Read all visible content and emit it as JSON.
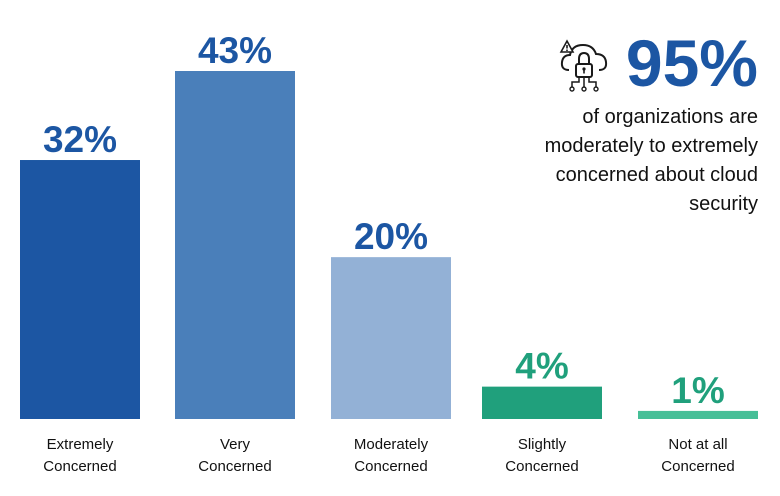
{
  "chart_data": {
    "type": "bar",
    "categories": [
      [
        "Extremely",
        "Concerned"
      ],
      [
        "Very",
        "Concerned"
      ],
      [
        "Moderately",
        "Concerned"
      ],
      [
        "Slightly",
        "Concerned"
      ],
      [
        "Not at all",
        "Concerned"
      ]
    ],
    "values": [
      32,
      43,
      20,
      4,
      1
    ],
    "value_labels": [
      "32%",
      "43%",
      "20%",
      "4%",
      "1%"
    ],
    "bar_colors": [
      "#1c56a3",
      "#4a7fba",
      "#93b1d6",
      "#20a07c",
      "#46bf97"
    ],
    "label_colors": [
      "#1c56a3",
      "#1c56a3",
      "#1c56a3",
      "#20a07c",
      "#20a07c"
    ],
    "ylim": [
      0,
      50
    ],
    "grid": false,
    "legend": "none",
    "xlabel": "",
    "ylabel": ""
  },
  "callout": {
    "stat": "95%",
    "text_lines": [
      "of organizations are",
      "moderately to extremely",
      "concerned about cloud",
      "security"
    ],
    "icon": "cloud-lock-warning-icon"
  }
}
